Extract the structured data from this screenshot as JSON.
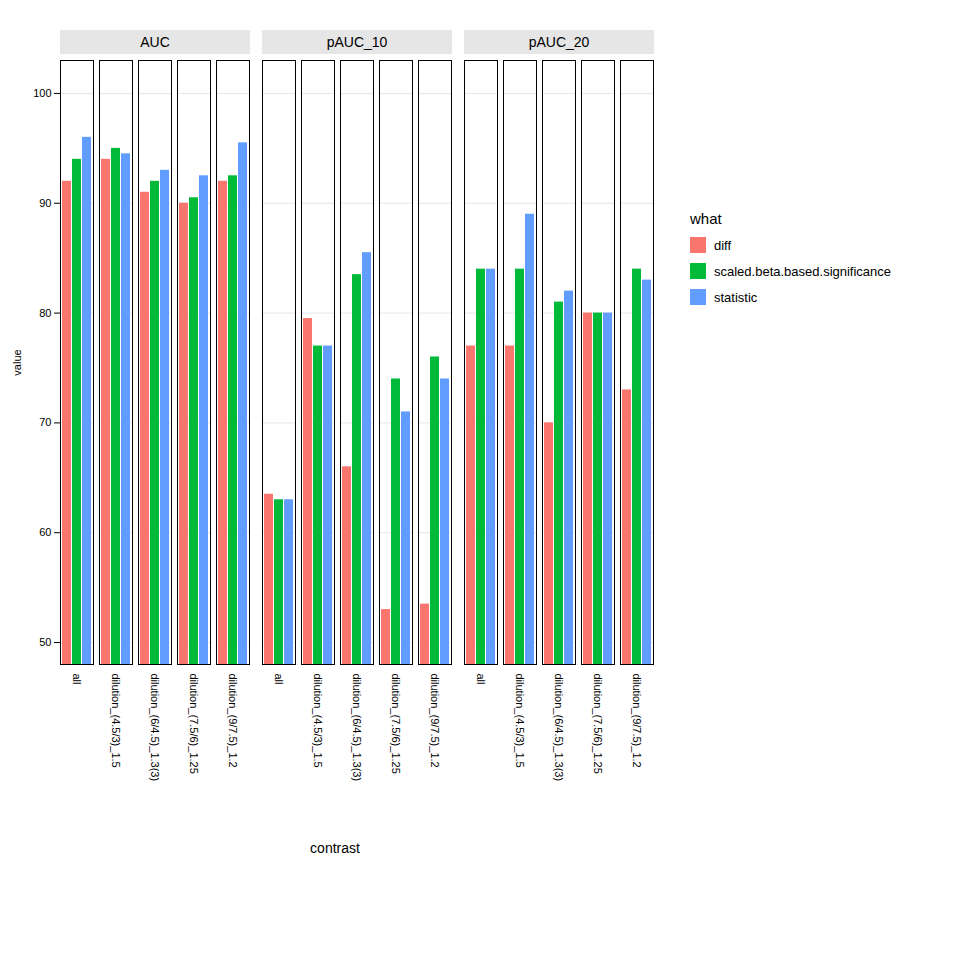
{
  "chart_data": {
    "type": "bar",
    "xlabel": "contrast",
    "ylabel": "value",
    "legend_title": "what",
    "categories": [
      "all",
      "dilution_(4.5/3)_1.5",
      "dilution_(6/4.5)_1.3(3)",
      "dilution_(7.5/6)_1.25",
      "dilution_(9/7.5)_1.2"
    ],
    "ylim": [
      48,
      103
    ],
    "yticks": [
      50,
      60,
      70,
      80,
      90,
      100
    ],
    "grid": true,
    "legend": "right",
    "panels": [
      {
        "title": "AUC",
        "series": [
          {
            "name": "diff",
            "color": "#F8766D",
            "values": [
              92.0,
              94.0,
              91.0,
              90.0,
              92.0
            ]
          },
          {
            "name": "scaled.beta.based.significance",
            "color": "#00BA38",
            "values": [
              94.0,
              95.0,
              92.0,
              90.5,
              92.5
            ]
          },
          {
            "name": "statistic",
            "color": "#619CFF",
            "values": [
              96.0,
              94.5,
              93.0,
              92.5,
              95.5
            ]
          }
        ]
      },
      {
        "title": "pAUC_10",
        "series": [
          {
            "name": "diff",
            "color": "#F8766D",
            "values": [
              63.5,
              79.5,
              66.0,
              53.0,
              53.5
            ]
          },
          {
            "name": "scaled.beta.based.significance",
            "color": "#00BA38",
            "values": [
              63.0,
              77.0,
              83.5,
              74.0,
              76.0
            ]
          },
          {
            "name": "statistic",
            "color": "#619CFF",
            "values": [
              63.0,
              77.0,
              85.5,
              71.0,
              74.0
            ]
          }
        ]
      },
      {
        "title": "pAUC_20",
        "series": [
          {
            "name": "diff",
            "color": "#F8766D",
            "values": [
              77.0,
              77.0,
              70.0,
              80.0,
              73.0
            ]
          },
          {
            "name": "scaled.beta.based.significance",
            "color": "#00BA38",
            "values": [
              84.0,
              84.0,
              81.0,
              80.0,
              84.0
            ]
          },
          {
            "name": "statistic",
            "color": "#619CFF",
            "values": [
              84.0,
              89.0,
              82.0,
              80.0,
              83.0
            ]
          }
        ]
      }
    ]
  }
}
